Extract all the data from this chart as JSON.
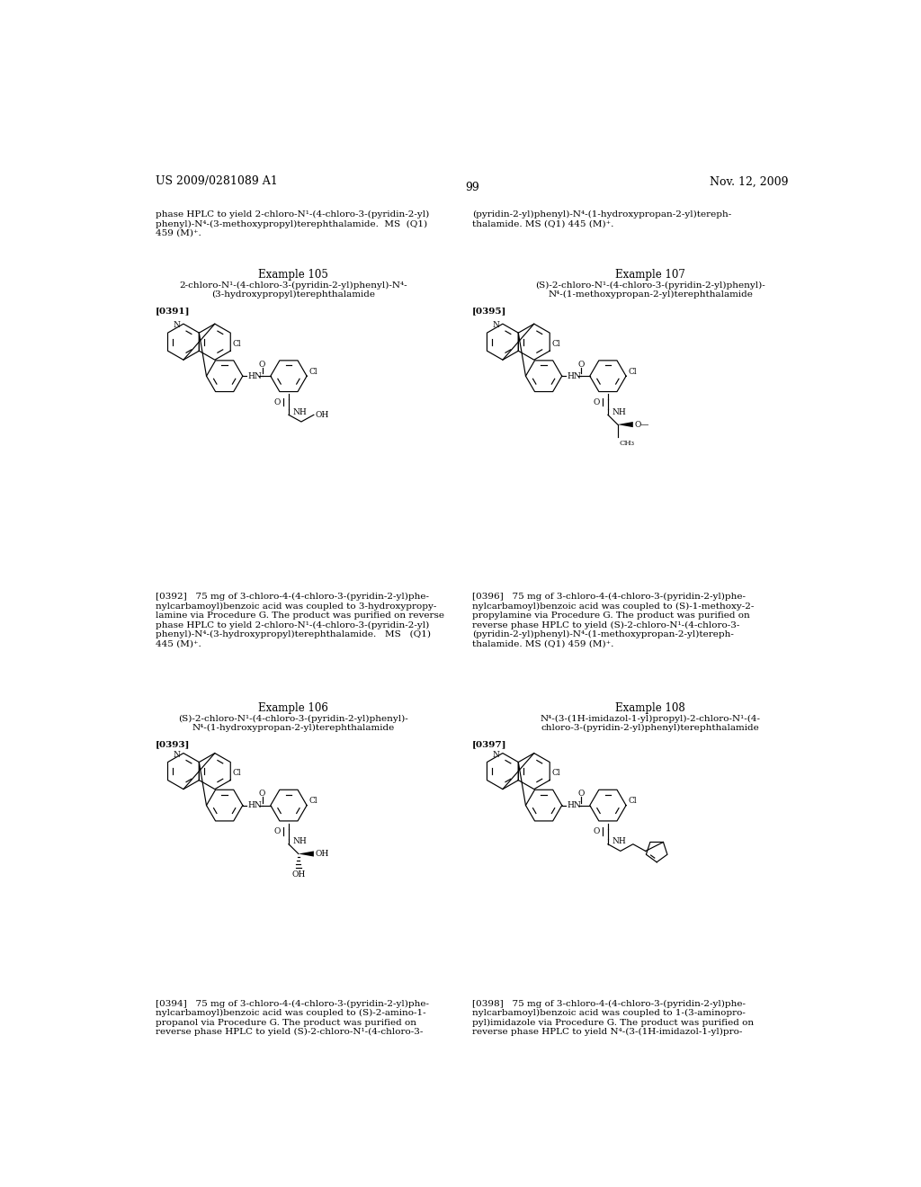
{
  "page_width": 10.24,
  "page_height": 13.2,
  "bg_color": "#ffffff",
  "header_left": "US 2009/0281089 A1",
  "header_right": "Nov. 12, 2009",
  "page_number": "99",
  "lm": 58,
  "rm": 512,
  "col_mid_l": 256,
  "col_mid_r": 768,
  "top_text_left": "phase HPLC to yield 2-chloro-N¹-(4-chloro-3-(pyridin-2-yl)\nphenyl)-N⁴-(3-methoxypropyl)terephthalamide.  MS  (Q1)\n459 (M)⁺.",
  "top_text_right": "(pyridin-2-yl)phenyl)-N⁴-(1-hydroxypropan-2-yl)tereph-\nthalamide. MS (Q1) 445 (M)⁺.",
  "ex105_title": "Example 105",
  "ex105_name": "2-chloro-N¹-(4-chloro-3-(pyridin-2-yl)phenyl)-N⁴-\n(3-hydroxypropyl)terephthalamide",
  "ex105_ref": "[0391]",
  "ex105_desc": "[0392]   75 mg of 3-chloro-4-(4-chloro-3-(pyridin-2-yl)phe-\nnylcarbamoyl)benzoic acid was coupled to 3-hydroxypropy-\nlamine via Procedure G. The product was purified on reverse\nphase HPLC to yield 2-chloro-N¹-(4-chloro-3-(pyridin-2-yl)\nphenyl)-N⁴-(3-hydroxypropyl)terephthalamide.   MS   (Q1)\n445 (M)⁺.",
  "ex106_title": "Example 106",
  "ex106_name": "(S)-2-chloro-N¹-(4-chloro-3-(pyridin-2-yl)phenyl)-\nN⁴-(1-hydroxypropan-2-yl)terephthalamide",
  "ex106_ref": "[0393]",
  "ex106_desc": "[0394]   75 mg of 3-chloro-4-(4-chloro-3-(pyridin-2-yl)phe-\nnylcarbamoyl)benzoic acid was coupled to (S)-2-amino-1-\npropanol via Procedure G. The product was purified on\nreverse phase HPLC to yield (S)-2-chloro-N¹-(4-chloro-3-",
  "ex107_title": "Example 107",
  "ex107_name": "(S)-2-chloro-N¹-(4-chloro-3-(pyridin-2-yl)phenyl)-\nN⁴-(1-methoxypropan-2-yl)terephthalamide",
  "ex107_ref": "[0395]",
  "ex107_desc": "[0396]   75 mg of 3-chloro-4-(4-chloro-3-(pyridin-2-yl)phe-\nnylcarbamoyl)benzoic acid was coupled to (S)-1-methoxy-2-\npropylamine via Procedure G. The product was purified on\nreverse phase HPLC to yield (S)-2-chloro-N¹-(4-chloro-3-\n(pyridin-2-yl)phenyl)-N⁴-(1-methoxypropan-2-yl)tereph-\nthalamide. MS (Q1) 459 (M)⁺.",
  "ex108_title": "Example 108",
  "ex108_name": "N⁴-(3-(1H-imidazol-1-yl)propyl)-2-chloro-N¹-(4-\nchloro-3-(pyridin-2-yl)phenyl)terephthalamide",
  "ex108_ref": "[0397]",
  "ex108_desc": "[0398]   75 mg of 3-chloro-4-(4-chloro-3-(pyridin-2-yl)phe-\nnylcarbamoyl)benzoic acid was coupled to 1-(3-aminopro-\npyl)imidazole via Procedure G. The product was purified on\nreverse phase HPLC to yield N⁴-(3-(1H-imidazol-1-yl)pro-"
}
